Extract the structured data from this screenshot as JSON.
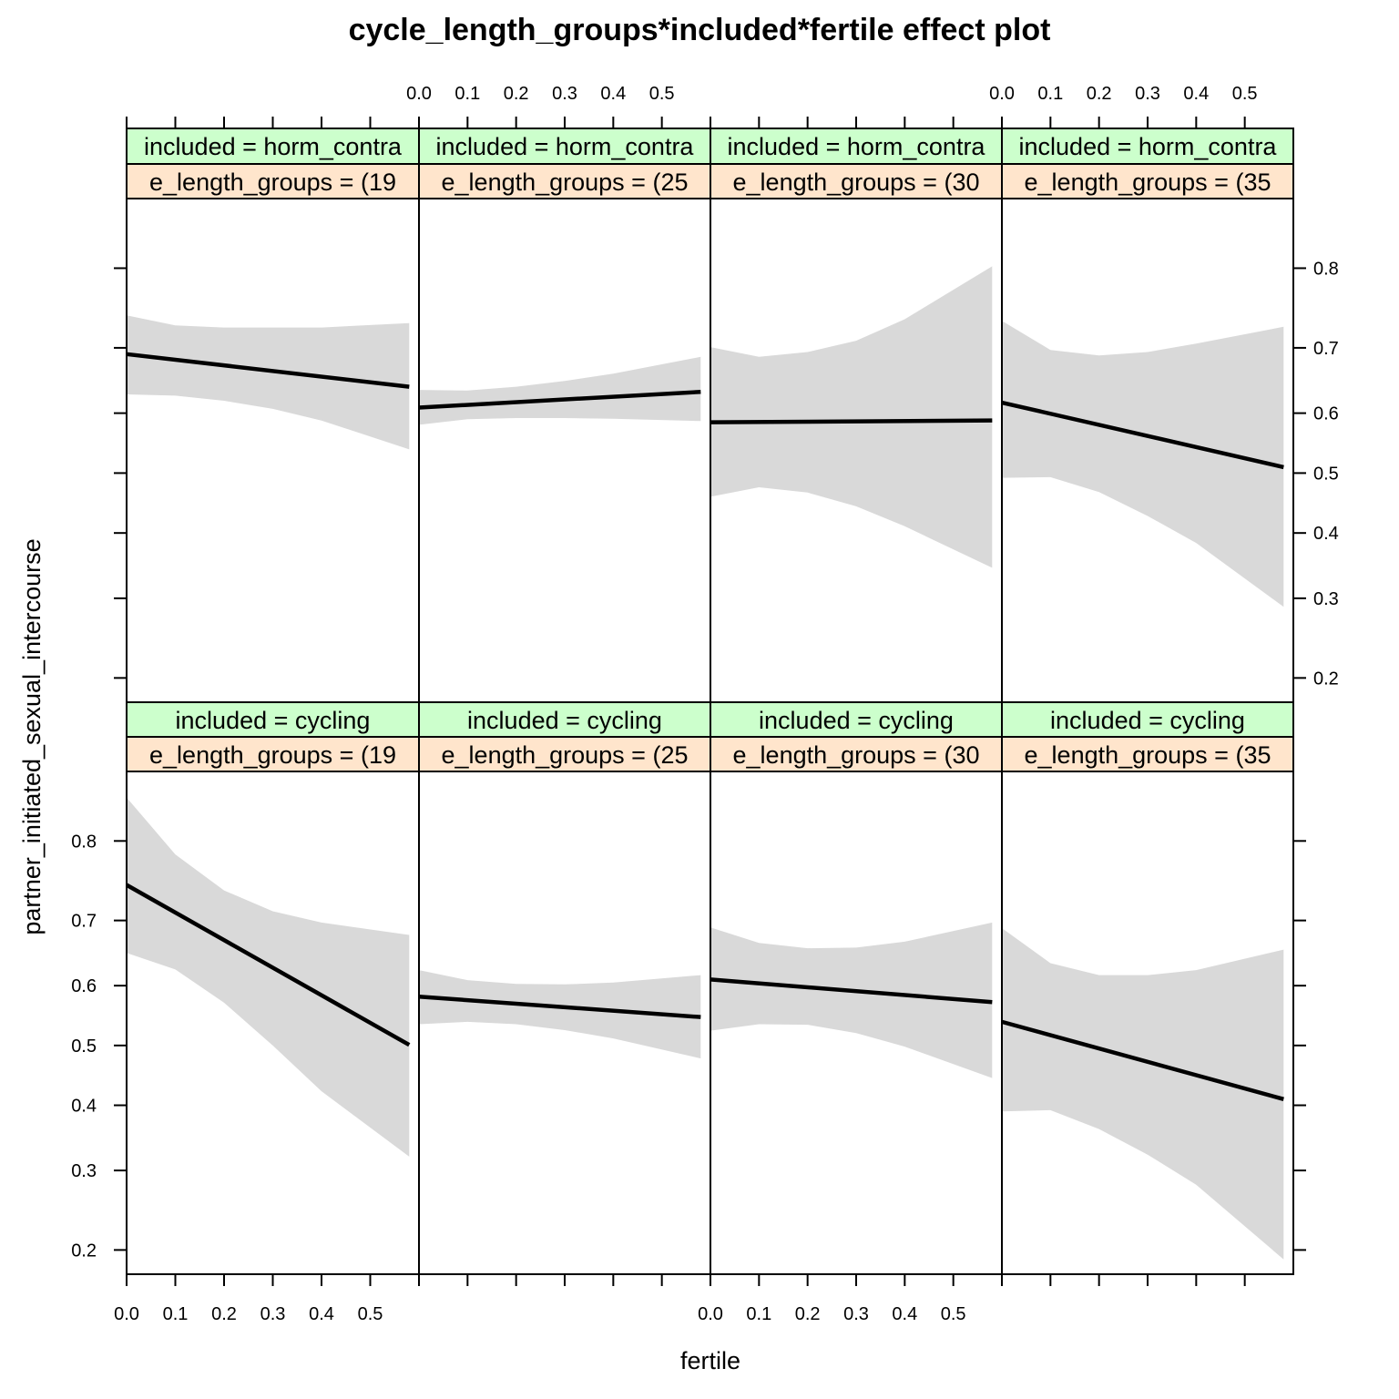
{
  "chart_data": {
    "type": "line",
    "title": "cycle_length_groups*included*fertile effect plot",
    "xlabel": "fertile",
    "ylabel": "partner_initiated_sexual_intercourse",
    "x_ticks": [
      "0.0",
      "0.1",
      "0.2",
      "0.3",
      "0.4",
      "0.5"
    ],
    "y_ticks": [
      "0.2",
      "0.3",
      "0.4",
      "0.5",
      "0.6",
      "0.7",
      "0.8"
    ],
    "x_range": [
      0,
      0.6
    ],
    "y_scale": "logit",
    "y_range": [
      0.175,
      0.865
    ],
    "band_color": "#d9d9d9",
    "line_color": "#000000",
    "strip_top_color": "#ccffcc",
    "strip_bottom_color": "#ffe5cc",
    "panels": [
      {
        "included": "included = horm_contra",
        "cycle_group": "e_length_groups = (19",
        "row": "top",
        "col": 0,
        "x": [
          0.0,
          0.1,
          0.2,
          0.3,
          0.4,
          0.58
        ],
        "fit": [
          0.691,
          0.685,
          0.676,
          0.668,
          0.659,
          0.642
        ],
        "lower": [
          0.63,
          0.628,
          0.62,
          0.607,
          0.588,
          0.54
        ],
        "upper": [
          0.744,
          0.731,
          0.728,
          0.728,
          0.728,
          0.734
        ]
      },
      {
        "included": "included = horm_contra",
        "cycle_group": "e_length_groups = (25",
        "row": "top",
        "col": 1,
        "x": [
          0.0,
          0.1,
          0.2,
          0.3,
          0.4,
          0.58
        ],
        "fit": [
          0.609,
          0.613,
          0.617,
          0.622,
          0.626,
          0.634
        ],
        "lower": [
          0.581,
          0.59,
          0.592,
          0.592,
          0.591,
          0.587
        ],
        "upper": [
          0.637,
          0.636,
          0.642,
          0.651,
          0.662,
          0.687
        ]
      },
      {
        "included": "included = horm_contra",
        "cycle_group": "e_length_groups = (30",
        "row": "top",
        "col": 2,
        "x": [
          0.0,
          0.1,
          0.2,
          0.3,
          0.4,
          0.58
        ],
        "fit": [
          0.585,
          0.585,
          0.586,
          0.586,
          0.587,
          0.588
        ],
        "lower": [
          0.46,
          0.476,
          0.467,
          0.444,
          0.411,
          0.345
        ],
        "upper": [
          0.701,
          0.687,
          0.694,
          0.71,
          0.739,
          0.802
        ]
      },
      {
        "included": "included = horm_contra",
        "cycle_group": "e_length_groups = (35",
        "row": "top",
        "col": 3,
        "x": [
          0.0,
          0.1,
          0.2,
          0.3,
          0.4,
          0.58
        ],
        "fit": [
          0.617,
          0.6,
          0.582,
          0.563,
          0.544,
          0.51
        ],
        "lower": [
          0.492,
          0.493,
          0.468,
          0.428,
          0.384,
          0.288
        ],
        "upper": [
          0.737,
          0.697,
          0.689,
          0.694,
          0.706,
          0.729
        ]
      },
      {
        "included": "included = cycling",
        "cycle_group": "e_length_groups = (19",
        "row": "bottom",
        "col": 0,
        "x": [
          0.0,
          0.1,
          0.2,
          0.3,
          0.4,
          0.58
        ],
        "fit": [
          0.748,
          0.712,
          0.672,
          0.63,
          0.587,
          0.501
        ],
        "lower": [
          0.652,
          0.626,
          0.572,
          0.5,
          0.423,
          0.32
        ],
        "upper": [
          0.843,
          0.785,
          0.741,
          0.713,
          0.697,
          0.679
        ]
      },
      {
        "included": "included = cycling",
        "cycle_group": "e_length_groups = (25",
        "row": "bottom",
        "col": 1,
        "x": [
          0.0,
          0.1,
          0.2,
          0.3,
          0.4,
          0.58
        ],
        "fit": [
          0.582,
          0.576,
          0.57,
          0.565,
          0.559,
          0.548
        ],
        "lower": [
          0.536,
          0.54,
          0.536,
          0.526,
          0.512,
          0.478
        ],
        "upper": [
          0.625,
          0.609,
          0.603,
          0.602,
          0.605,
          0.617
        ]
      },
      {
        "included": "included = cycling",
        "cycle_group": "e_length_groups = (30",
        "row": "bottom",
        "col": 2,
        "x": [
          0.0,
          0.1,
          0.2,
          0.3,
          0.4,
          0.58
        ],
        "fit": [
          0.61,
          0.603,
          0.597,
          0.59,
          0.584,
          0.573
        ],
        "lower": [
          0.525,
          0.536,
          0.535,
          0.521,
          0.498,
          0.445
        ],
        "upper": [
          0.69,
          0.667,
          0.659,
          0.66,
          0.669,
          0.697
        ]
      },
      {
        "included": "included = cycling",
        "cycle_group": "e_length_groups = (35",
        "row": "bottom",
        "col": 3,
        "x": [
          0.0,
          0.1,
          0.2,
          0.3,
          0.4,
          0.58
        ],
        "fit": [
          0.54,
          0.517,
          0.494,
          0.472,
          0.45,
          0.41
        ],
        "lower": [
          0.39,
          0.392,
          0.362,
          0.323,
          0.28,
          0.19
        ],
        "upper": [
          0.689,
          0.636,
          0.617,
          0.617,
          0.625,
          0.657
        ]
      }
    ]
  }
}
